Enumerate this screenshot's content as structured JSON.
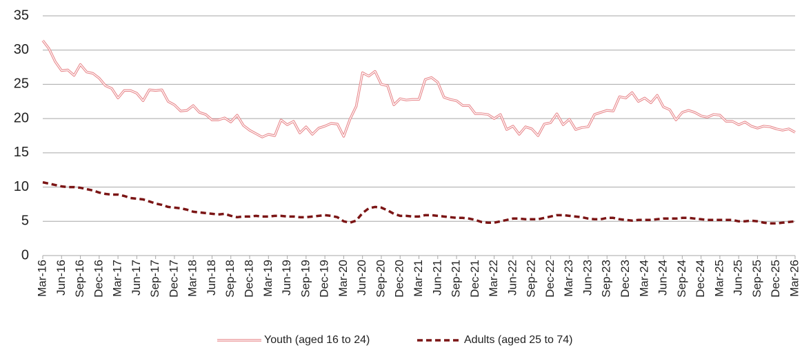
{
  "chart_data": {
    "type": "line",
    "categories": [
      "Mar-16",
      null,
      null,
      "Jun-16",
      null,
      null,
      "Sep-16",
      null,
      null,
      "Dec-16",
      null,
      null,
      "Mar-17",
      null,
      null,
      "Jun-17",
      null,
      null,
      "Sep-17",
      null,
      null,
      "Dec-17",
      null,
      null,
      "Mar-18",
      null,
      null,
      "Jun-18",
      null,
      null,
      "Sep-18",
      null,
      null,
      "Dec-18",
      null,
      null,
      "Mar-19",
      null,
      null,
      "Jun-19",
      null,
      null,
      "Sep-19",
      null,
      null,
      "Dec-19",
      null,
      null,
      "Mar-20",
      null,
      null,
      "Jun-20",
      null,
      null,
      "Sep-20",
      null,
      null,
      "Dec-20",
      null,
      null,
      "Mar-21",
      null,
      null,
      "Jun-21",
      null,
      null,
      "Sep-21",
      null,
      null,
      "Dec-21",
      null,
      null,
      "Mar-22",
      null,
      null,
      "Jun-22",
      null,
      null,
      "Sep-22",
      null,
      null,
      "Dec-22",
      null,
      null,
      "Mar-23",
      null,
      null,
      "Jun-23",
      null,
      null,
      "Sep-23",
      null,
      null,
      "Dec-23",
      null,
      null,
      "Mar-24",
      null,
      null,
      "Jun-24",
      null,
      null,
      "Sep-24",
      null,
      null,
      "Dec-24",
      null,
      null,
      "Mar-25",
      null,
      null,
      "Jun-25",
      null,
      null,
      "Sep-25",
      null,
      null,
      "Dec-25",
      null,
      null,
      "Mar-26"
    ],
    "series": [
      {
        "name": "Youth (aged 16 to 24)",
        "color": "#e8888c",
        "style": "double",
        "values": [
          31.4,
          30.2,
          28.3,
          27.0,
          27.1,
          26.3,
          27.9,
          26.8,
          26.6,
          25.9,
          24.8,
          24.4,
          23.0,
          24.1,
          24.1,
          23.7,
          22.6,
          24.2,
          24.1,
          24.2,
          22.5,
          22.0,
          21.1,
          21.2,
          21.9,
          20.9,
          20.6,
          19.8,
          19.8,
          20.1,
          19.5,
          20.5,
          19.0,
          18.3,
          17.8,
          17.3,
          17.7,
          17.5,
          19.8,
          19.1,
          19.6,
          17.9,
          18.8,
          17.7,
          18.6,
          18.9,
          19.3,
          19.2,
          17.4,
          19.9,
          21.8,
          26.7,
          26.2,
          26.9,
          25.0,
          24.8,
          22.0,
          22.9,
          22.7,
          22.8,
          22.8,
          25.7,
          26.0,
          25.3,
          23.1,
          22.8,
          22.6,
          21.9,
          21.9,
          20.7,
          20.7,
          20.6,
          20.0,
          20.6,
          18.4,
          18.9,
          17.7,
          18.8,
          18.5,
          17.5,
          19.2,
          19.4,
          20.7,
          19.1,
          19.9,
          18.4,
          18.7,
          18.8,
          20.6,
          20.9,
          21.2,
          21.1,
          23.2,
          23.0,
          23.8,
          22.5,
          23.0,
          22.3,
          23.4,
          21.7,
          21.3,
          19.8,
          20.9,
          21.2,
          20.9,
          20.4,
          20.2,
          20.6,
          20.5,
          19.6,
          19.6,
          19.1,
          19.5,
          18.9,
          18.6,
          18.9,
          18.8,
          18.5,
          18.3,
          18.5,
          18.0
        ]
      },
      {
        "name": "Adults (aged 25 to 74)",
        "color": "#7b1515",
        "style": "dashed",
        "values": [
          10.7,
          10.5,
          10.3,
          10.1,
          10.0,
          10.0,
          9.9,
          9.7,
          9.5,
          9.2,
          9.0,
          8.9,
          8.9,
          8.7,
          8.4,
          8.3,
          8.2,
          7.9,
          7.6,
          7.4,
          7.1,
          7.0,
          6.9,
          6.7,
          6.4,
          6.3,
          6.2,
          6.1,
          6.0,
          6.1,
          5.8,
          5.6,
          5.7,
          5.7,
          5.8,
          5.7,
          5.7,
          5.8,
          5.8,
          5.7,
          5.7,
          5.6,
          5.6,
          5.7,
          5.8,
          5.9,
          5.8,
          5.6,
          5.0,
          4.8,
          5.1,
          6.2,
          6.9,
          7.1,
          7.0,
          6.6,
          6.1,
          5.8,
          5.8,
          5.7,
          5.7,
          5.9,
          5.9,
          5.8,
          5.7,
          5.6,
          5.5,
          5.5,
          5.4,
          5.2,
          4.9,
          4.8,
          4.8,
          5.0,
          5.2,
          5.4,
          5.4,
          5.3,
          5.3,
          5.3,
          5.5,
          5.7,
          5.9,
          5.9,
          5.8,
          5.7,
          5.6,
          5.4,
          5.3,
          5.3,
          5.5,
          5.5,
          5.3,
          5.2,
          5.1,
          5.2,
          5.2,
          5.2,
          5.3,
          5.4,
          5.4,
          5.4,
          5.5,
          5.5,
          5.4,
          5.3,
          5.2,
          5.2,
          5.2,
          5.2,
          5.2,
          5.0,
          5.0,
          5.1,
          5.0,
          4.8,
          4.7,
          4.7,
          4.8,
          4.9,
          5.0
        ]
      }
    ],
    "ylim": [
      0,
      35
    ],
    "yticks": [
      0,
      5,
      10,
      15,
      20,
      25,
      30,
      35
    ],
    "grid": true,
    "legend": "bottom"
  }
}
